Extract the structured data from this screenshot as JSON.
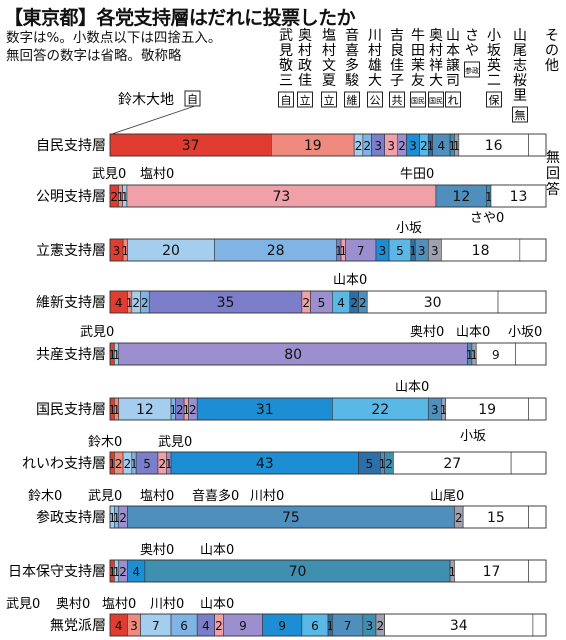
{
  "title": "【東京都】各党支持層はだれに投票したか",
  "notes": [
    "数字は%。小数点以下は四捨五入。",
    "無回答の数字は省略。敬称略"
  ],
  "chart_data": {
    "type": "stacked-bar-horizontal",
    "title": "【東京都】各党支持層はだれに投票したか",
    "xlim": [
      0,
      100
    ],
    "unit": "%",
    "candidates": [
      {
        "name": "鈴木大地",
        "party": "自"
      },
      {
        "name": "武見敬三",
        "party": "自"
      },
      {
        "name": "奥村政佳",
        "party": "立"
      },
      {
        "name": "塩村文夏",
        "party": "立"
      },
      {
        "name": "音喜多駿",
        "party": "維"
      },
      {
        "name": "川村雄大",
        "party": "公"
      },
      {
        "name": "吉良佳子",
        "party": "共"
      },
      {
        "name": "牛田茉友",
        "party": "国民"
      },
      {
        "name": "奥村祥大",
        "party": "国民"
      },
      {
        "name": "山本譲司",
        "party": "れ"
      },
      {
        "name": "さや",
        "party": "参政"
      },
      {
        "name": "小坂英二",
        "party": "保"
      },
      {
        "name": "山尾志桜里",
        "party": "無"
      },
      {
        "name": "その他",
        "party": ""
      }
    ],
    "no_answer_label": "無回答",
    "rows": [
      {
        "label": "自民支持層",
        "values": [
          37,
          19,
          2,
          2,
          3,
          3,
          2,
          3,
          2,
          1,
          4,
          1,
          1,
          16
        ]
      },
      {
        "label": "公明支持層",
        "values": [
          2,
          1,
          1,
          0,
          0,
          73,
          0,
          0,
          0,
          0,
          12,
          1,
          0,
          13
        ]
      },
      {
        "label": "立憲支持層",
        "values": [
          3,
          1,
          20,
          28,
          1,
          1,
          7,
          3,
          5,
          1,
          3,
          0,
          3,
          18
        ]
      },
      {
        "label": "維新支持層",
        "values": [
          4,
          1,
          2,
          2,
          35,
          2,
          5,
          0,
          4,
          2,
          2,
          0,
          0,
          30
        ]
      },
      {
        "label": "共産支持層",
        "values": [
          1,
          0,
          1,
          0,
          0,
          0,
          80,
          0,
          0,
          0,
          1,
          0,
          1,
          9
        ]
      },
      {
        "label": "国民支持層",
        "values": [
          1,
          1,
          12,
          1,
          2,
          1,
          2,
          31,
          22,
          0,
          3,
          0,
          1,
          19
        ]
      },
      {
        "label": "れいわ支持層",
        "values": [
          1,
          2,
          2,
          1,
          5,
          2,
          1,
          43,
          0,
          5,
          1,
          2,
          0,
          27
        ]
      },
      {
        "label": "参政支持層",
        "values": [
          0,
          0,
          1,
          1,
          0,
          0,
          2,
          0,
          0,
          0,
          75,
          0,
          2,
          15
        ]
      },
      {
        "label": "日本保守支持層",
        "values": [
          1,
          0,
          1,
          0,
          0,
          0,
          2,
          4,
          0,
          0,
          0,
          70,
          1,
          17
        ]
      },
      {
        "label": "無党派層",
        "values": [
          4,
          3,
          7,
          6,
          4,
          2,
          9,
          9,
          6,
          1,
          7,
          3,
          2,
          34
        ]
      }
    ],
    "outside_labels": [
      {
        "row": 1,
        "text": "武見0"
      },
      {
        "row": 1,
        "text": "塩村0"
      },
      {
        "row": 1,
        "text": "牛田0"
      },
      {
        "row": 1,
        "text": "さや0"
      },
      {
        "row": 2,
        "text": "小坂"
      },
      {
        "row": 3,
        "text": "山本0"
      },
      {
        "row": 4,
        "text": "武見0"
      },
      {
        "row": 4,
        "text": "奥村0"
      },
      {
        "row": 4,
        "text": "山本0"
      },
      {
        "row": 4,
        "text": "小坂0"
      },
      {
        "row": 5,
        "text": "山本0"
      },
      {
        "row": 5,
        "text": "小坂"
      },
      {
        "row": 6,
        "text": "鈴木0"
      },
      {
        "row": 6,
        "text": "武見0"
      },
      {
        "row": 7,
        "text": "鈴木0"
      },
      {
        "row": 7,
        "text": "武見0"
      },
      {
        "row": 7,
        "text": "塩村0"
      },
      {
        "row": 7,
        "text": "音喜多0"
      },
      {
        "row": 7,
        "text": "川村0"
      },
      {
        "row": 7,
        "text": "山尾0"
      },
      {
        "row": 8,
        "text": "奥村0"
      },
      {
        "row": 8,
        "text": "山本0"
      },
      {
        "row": 9,
        "text": "武見0"
      },
      {
        "row": 9,
        "text": "奥村0"
      },
      {
        "row": 9,
        "text": "塩村0"
      },
      {
        "row": 9,
        "text": "川村0"
      },
      {
        "row": 9,
        "text": "山本0"
      }
    ],
    "colors": [
      "#e03c2f",
      "#ef8a7e",
      "#a5cdee",
      "#7fb4e4",
      "#7d7ec9",
      "#f0a0a8",
      "#9b8fd0",
      "#1e8ed4",
      "#5ab8e6",
      "#2d6fa8",
      "#4f8fbd",
      "#3f8fb0",
      "#9fa0b0",
      "#ffffff"
    ]
  }
}
